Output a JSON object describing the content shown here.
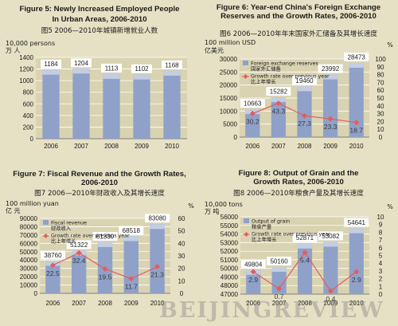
{
  "watermark": "BEIJINGREVIEW",
  "colors": {
    "bar_fill": "#8fa1c8",
    "bar_top": "#c3cde4",
    "rate_line": "#e35d5d",
    "grid": "#ffffff"
  },
  "chart_data": [
    {
      "type": "bar",
      "title": "Figure 5: Newly Increased Employed People In Urban Areas, 2006-2010",
      "title_cn": "图5  2006—2010年城镇新增就业人数",
      "left_unit": "10,000 persons",
      "left_unit_cn": "万 人",
      "categories": [
        "2006",
        "2007",
        "2008",
        "2009",
        "2010"
      ],
      "values": [
        1184,
        1204,
        1113,
        1102,
        1168
      ],
      "ylim": [
        0,
        1400
      ],
      "yticks": [
        0,
        200,
        400,
        600,
        800,
        1000,
        1200,
        1400
      ],
      "grid": true
    },
    {
      "type": "bar",
      "title": "Figure 6: Year-end China's Foreign Exchange Reserves and the Growth Rates, 2006-2010",
      "title_cn": "图6  2006—2010年年末国家外汇储备及其增长速度",
      "left_unit": "100 million USD",
      "left_unit_cn": "亿美元",
      "right_unit": "%",
      "categories": [
        "2006",
        "2007",
        "2008",
        "2009",
        "2010"
      ],
      "series": [
        {
          "name": "Foreign exchange reserves",
          "name_cn": "国家外汇储备",
          "values": [
            10663,
            15282,
            19460,
            23992,
            28473
          ]
        },
        {
          "name": "Growth rate over previous year",
          "name_cn": "比上年增长",
          "type": "line",
          "axis": "right",
          "values": [
            30.2,
            43.3,
            27.3,
            23.3,
            18.7
          ]
        }
      ],
      "ylim": [
        0,
        30000
      ],
      "yticks": [
        0,
        5000,
        10000,
        15000,
        20000,
        25000,
        30000
      ],
      "y2lim": [
        0,
        100
      ],
      "y2ticks": [
        0,
        10,
        20,
        30,
        40,
        50,
        60,
        70,
        80,
        90,
        100
      ],
      "grid": true,
      "legend": "top-left"
    },
    {
      "type": "bar",
      "title": "Figure 7: Fiscal Revenue and the Growth Rates, 2006-2010",
      "title_cn": "图7  2006—2010年财政收入及其增长速度",
      "left_unit": "100 million yuan",
      "left_unit_cn": "亿 元",
      "right_unit": "%",
      "categories": [
        "2006",
        "2007",
        "2008",
        "2009",
        "2010"
      ],
      "series": [
        {
          "name": "Fiscal revenue",
          "name_cn": "财政收入",
          "values": [
            38760,
            51322,
            61330,
            68518,
            83080
          ]
        },
        {
          "name": "Growth rate over previous year",
          "name_cn": "比上年增长",
          "type": "line",
          "axis": "right",
          "values": [
            22.5,
            32.4,
            19.5,
            11.7,
            21.3
          ]
        }
      ],
      "ylim": [
        0,
        90000
      ],
      "yticks": [
        0,
        10000,
        20000,
        30000,
        40000,
        50000,
        60000,
        70000,
        80000,
        90000
      ],
      "y2lim": [
        0,
        60
      ],
      "y2ticks": [
        0,
        10,
        20,
        30,
        40,
        50,
        60
      ],
      "grid": true,
      "legend": "top-left"
    },
    {
      "type": "bar",
      "title": "Figure 8: Output of Grain and the Growth Rates, 2006-2010",
      "title_cn": "图8  2006—2010年粮食产量及其增长速度",
      "left_unit": "10,000 tons",
      "left_unit_cn": "万 吨",
      "right_unit": "%",
      "categories": [
        "2006",
        "2007",
        "2008",
        "2009",
        "2010"
      ],
      "series": [
        {
          "name": "Output of grain",
          "name_cn": "粮食产量",
          "values": [
            49804,
            50160,
            52871,
            53082,
            54641
          ]
        },
        {
          "name": "Growth rate over previous year",
          "name_cn": "比上年增长",
          "type": "line",
          "axis": "right",
          "values": [
            2.9,
            0.7,
            5.4,
            0.4,
            2.9
          ]
        }
      ],
      "ylim": [
        47000,
        56000
      ],
      "yticks": [
        47000,
        48000,
        49000,
        50000,
        51000,
        52000,
        53000,
        54000,
        55000,
        56000
      ],
      "y2lim": [
        0,
        10
      ],
      "y2ticks": [
        0,
        1,
        2,
        3,
        4,
        5,
        6,
        7,
        8,
        9,
        10
      ],
      "grid": true,
      "legend": "top-left"
    }
  ]
}
